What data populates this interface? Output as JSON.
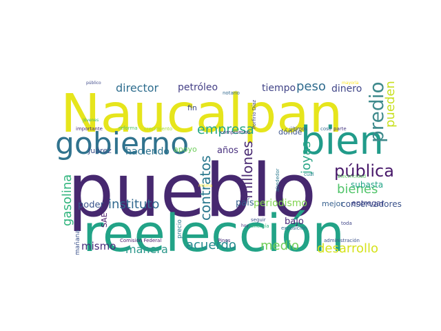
{
  "words": [
    {
      "text": "pueblo",
      "color": "#46286f"
    },
    {
      "text": "reelección",
      "color": "#22a387"
    },
    {
      "text": "Naucalpan",
      "color": "#e6e51c"
    },
    {
      "text": "bien",
      "color": "#219b8a"
    },
    {
      "text": "gobierno",
      "color": "#30738e"
    },
    {
      "text": "pública",
      "color": "#48186a"
    },
    {
      "text": "predio",
      "color": "#3f8a8c"
    },
    {
      "text": "pueden",
      "color": "#c8e020"
    },
    {
      "text": "empresa",
      "color": "#27a884"
    },
    {
      "text": "contratos",
      "color": "#2a788e"
    },
    {
      "text": "millones",
      "color": "#4a2b73"
    },
    {
      "text": "joyas",
      "color": "#2ba687"
    },
    {
      "text": "instituto",
      "color": "#30688e"
    },
    {
      "text": "gasolina",
      "color": "#2fb47c"
    },
    {
      "text": "bienes",
      "color": "#51c46a"
    },
    {
      "text": "desarrollo",
      "color": "#d5e21a"
    },
    {
      "text": "director",
      "color": "#2e6d8e"
    },
    {
      "text": "peso",
      "color": "#2f6b8e"
    },
    {
      "text": "acuerdo",
      "color": "#23898e"
    },
    {
      "text": "medio",
      "color": "#6ece58"
    },
    {
      "text": "manera",
      "color": "#2b978b"
    },
    {
      "text": "mismo",
      "color": "#472c7a"
    },
    {
      "text": "petróleo",
      "color": "#433e85"
    },
    {
      "text": "tiempo",
      "color": "#414487"
    },
    {
      "text": "dinero",
      "color": "#404688"
    },
    {
      "text": "periodismo",
      "color": "#7fd34e"
    },
    {
      "text": "conservadores",
      "color": "#3b528b"
    },
    {
      "text": "subasta",
      "color": "#20a386"
    },
    {
      "text": "haciendo",
      "color": "#2c728e"
    },
    {
      "text": "poder",
      "color": "#3a548c"
    },
    {
      "text": "país",
      "color": "#355f8d"
    },
    {
      "text": "años",
      "color": "#472f7d"
    },
    {
      "text": "bajo",
      "color": "#482677"
    },
    {
      "text": "entregar",
      "color": "#404388"
    },
    {
      "text": "mejor",
      "color": "#355f8d"
    },
    {
      "text": "dónde",
      "color": "#3b528b"
    },
    {
      "text": "fin",
      "color": "#3e4a89"
    },
    {
      "text": "Juárez",
      "color": "#3b518b"
    },
    {
      "text": "apoyo",
      "color": "#6ccd5a"
    },
    {
      "text": "SAE",
      "color": "#48186a"
    },
    {
      "text": "mañana",
      "color": "#3b528b"
    },
    {
      "text": "precio",
      "color": "#2a788e"
    },
    {
      "text": "notario",
      "color": "#31688e"
    },
    {
      "text": "Porfirio Díaz",
      "color": "#414487"
    },
    {
      "text": "compromiso",
      "color": "#453781"
    },
    {
      "text": "crecimiento",
      "color": "#a5db36"
    },
    {
      "text": "reforma",
      "color": "#50c46a"
    },
    {
      "text": "importante",
      "color": "#472d7b"
    },
    {
      "text": "jóvenes",
      "color": "#35b779"
    },
    {
      "text": "público",
      "color": "#3e4989"
    },
    {
      "text": "alrededor",
      "color": "#2a788e"
    },
    {
      "text": "Comisión Federal",
      "color": "#48186a"
    },
    {
      "text": "últimos",
      "color": "#3b528b"
    },
    {
      "text": "cosa",
      "color": "#31688e"
    },
    {
      "text": "parte",
      "color": "#453781"
    },
    {
      "text": "mayoría",
      "color": "#fde725"
    },
    {
      "text": "cuál",
      "color": "#26828e"
    },
    {
      "text": "Electricidad",
      "color": "#5ec962"
    },
    {
      "text": "misma",
      "color": "#fde725"
    },
    {
      "text": "seguir",
      "color": "#3b528b"
    },
    {
      "text": "hoy",
      "color": "#472d7b"
    },
    {
      "text": "energía",
      "color": "#2fb47c"
    },
    {
      "text": "exposición",
      "color": "#31688e"
    },
    {
      "text": "toda",
      "color": "#404688"
    },
    {
      "text": "Pinos",
      "color": "#482878"
    },
    {
      "text": "administración",
      "color": "#3b528b"
    }
  ]
}
